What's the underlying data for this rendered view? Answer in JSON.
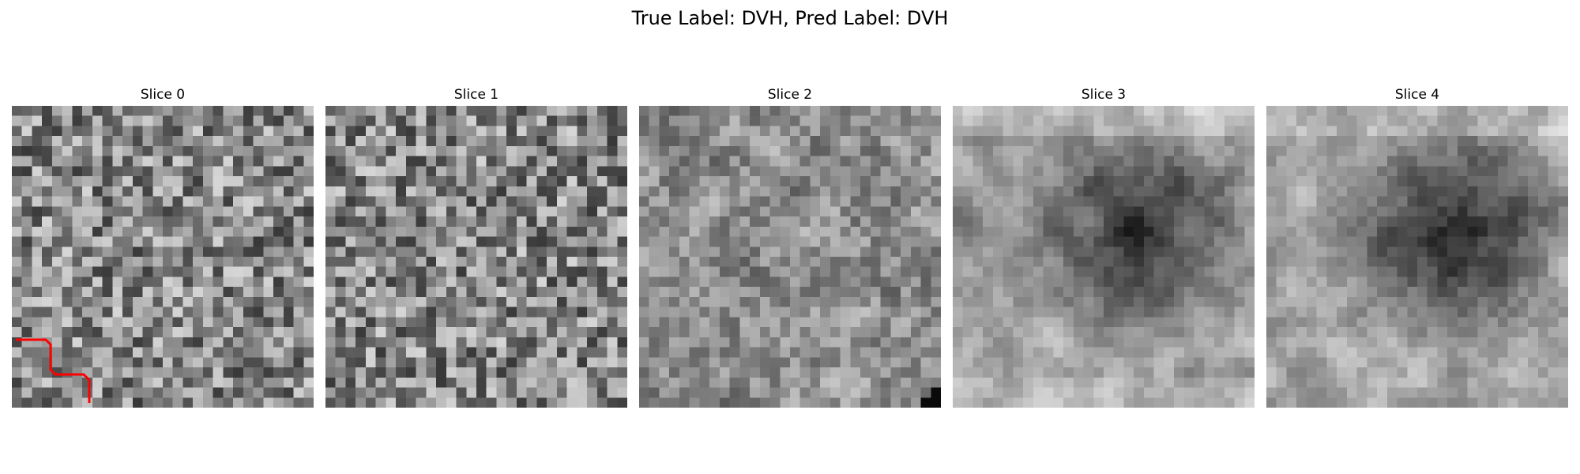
{
  "figure": {
    "title": "True Label: DVH, Pred Label: DVH"
  },
  "panels": [
    {
      "title": "Slice 0",
      "pattern": "noise",
      "seed": 11
    },
    {
      "title": "Slice 1",
      "pattern": "noise",
      "seed": 23
    },
    {
      "title": "Slice 2",
      "pattern": "smooth-noise",
      "seed": 37
    },
    {
      "title": "Slice 3",
      "pattern": "dark-center",
      "seed": 51
    },
    {
      "title": "Slice 4",
      "pattern": "dark-center",
      "seed": 67
    }
  ],
  "colors": {
    "annotation": "#ff0000"
  }
}
